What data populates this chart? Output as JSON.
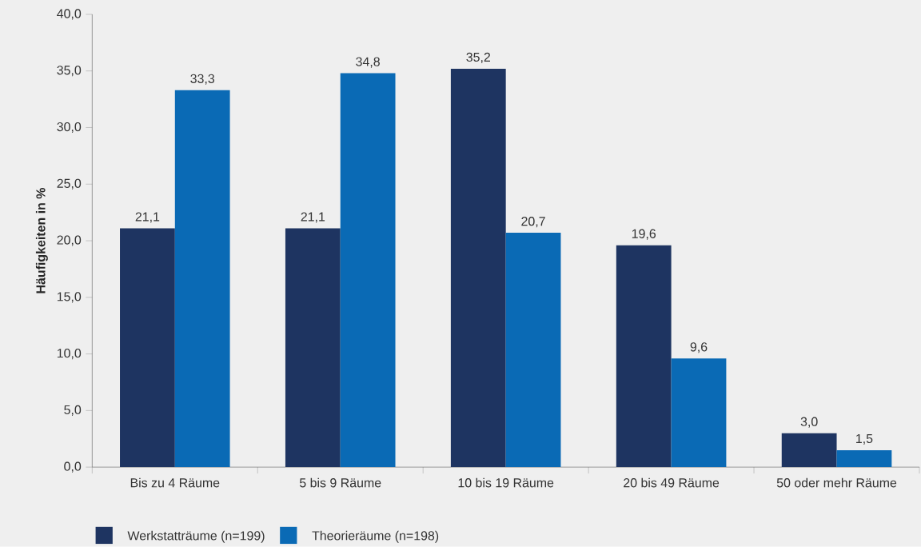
{
  "chart_data": {
    "type": "bar",
    "ylabel": "Häufigkeiten in %",
    "categories": [
      "Bis zu 4 Räume",
      "5 bis 9 Räume",
      "10 bis 19 Räume",
      "20 bis 49 Räume",
      "50 oder mehr Räume"
    ],
    "series": [
      {
        "name": "Werkstatträume (n=199)",
        "color": "#1e3461",
        "values": [
          21.1,
          21.1,
          35.2,
          19.6,
          3.0
        ],
        "value_labels": [
          "21,1",
          "21,1",
          "35,2",
          "19,6",
          "3,0"
        ]
      },
      {
        "name": "Theorieräume (n=198)",
        "color": "#0a6ab5",
        "values": [
          33.3,
          34.8,
          20.7,
          9.6,
          1.5
        ],
        "value_labels": [
          "33,3",
          "34,8",
          "20,7",
          "9,6",
          "1,5"
        ]
      }
    ],
    "ylim": [
      0,
      40
    ],
    "yticks": [
      {
        "value": 0,
        "label": "0,0"
      },
      {
        "value": 5,
        "label": "5,0"
      },
      {
        "value": 10,
        "label": "10,0"
      },
      {
        "value": 15,
        "label": "15,0"
      },
      {
        "value": 20,
        "label": "20,0"
      },
      {
        "value": 25,
        "label": "25,0"
      },
      {
        "value": 30,
        "label": "30,0"
      },
      {
        "value": 35,
        "label": "35,0"
      },
      {
        "value": 40,
        "label": "40,0"
      }
    ],
    "grid": false,
    "legend": "bottom left"
  }
}
